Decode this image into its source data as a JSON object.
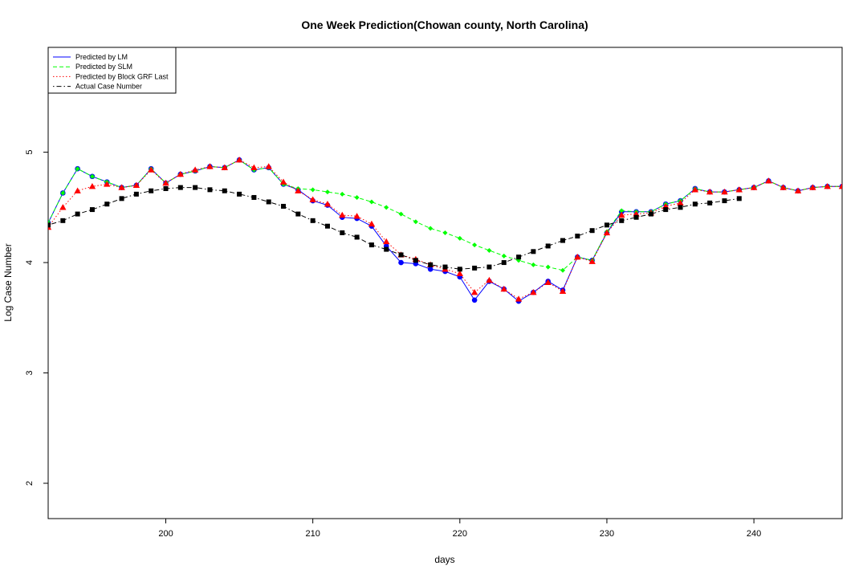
{
  "chart_data": {
    "type": "line",
    "title": "One Week Prediction(Chowan county, North Carolina)",
    "xlabel": "days",
    "ylabel": "Log Case Number",
    "xlim": [
      192,
      246
    ],
    "ylim": [
      1.68,
      5.95
    ],
    "xticks": [
      200,
      210,
      220,
      230,
      240
    ],
    "yticks": [
      2,
      3,
      4,
      5
    ],
    "grid": false,
    "legend_position": "top-left",
    "series": [
      {
        "name": "Predicted by LM",
        "color": "#0000ff",
        "line_style": "solid",
        "marker": "circle",
        "x": [
          192,
          193,
          194,
          195,
          196,
          197,
          198,
          199,
          200,
          201,
          202,
          203,
          204,
          205,
          206,
          207,
          208,
          209,
          210,
          211,
          212,
          213,
          214,
          215,
          216,
          217,
          218,
          219,
          220,
          221,
          222,
          223,
          224,
          225,
          226,
          227,
          228,
          229,
          230,
          231,
          232,
          233,
          234,
          235,
          236,
          237,
          238,
          239,
          240,
          241,
          242,
          243,
          244,
          245,
          246
        ],
        "y": [
          4.36,
          4.63,
          4.85,
          4.78,
          4.73,
          4.68,
          4.7,
          4.85,
          4.72,
          4.8,
          4.83,
          4.87,
          4.86,
          4.93,
          4.84,
          4.86,
          4.71,
          4.66,
          4.56,
          4.52,
          4.41,
          4.4,
          4.33,
          4.15,
          4.0,
          3.99,
          3.94,
          3.92,
          3.87,
          3.66,
          3.83,
          3.76,
          3.65,
          3.73,
          3.83,
          3.75,
          4.05,
          4.02,
          4.27,
          4.46,
          4.46,
          4.46,
          4.53,
          4.56,
          4.67,
          4.64,
          4.64,
          4.66,
          4.68,
          4.74,
          4.68,
          4.65,
          4.68,
          4.69,
          4.69
        ]
      },
      {
        "name": "Predicted by SLM",
        "color": "#00ff00",
        "line_style": "dashed",
        "marker": "diamond",
        "x": [
          192,
          193,
          194,
          195,
          196,
          197,
          198,
          199,
          200,
          201,
          202,
          203,
          204,
          205,
          206,
          207,
          208,
          209,
          210,
          211,
          212,
          213,
          214,
          215,
          216,
          217,
          218,
          219,
          220,
          221,
          222,
          223,
          224,
          225,
          226,
          227,
          228,
          229,
          230,
          231,
          232,
          233,
          234,
          235,
          236,
          237,
          238,
          239,
          240,
          241,
          242,
          243,
          244,
          245,
          246
        ],
        "y": [
          4.36,
          4.63,
          4.85,
          4.78,
          4.73,
          4.68,
          4.7,
          4.85,
          4.72,
          4.8,
          4.83,
          4.87,
          4.86,
          4.93,
          4.84,
          4.86,
          4.71,
          4.67,
          4.66,
          4.64,
          4.62,
          4.59,
          4.55,
          4.5,
          4.44,
          4.37,
          4.31,
          4.27,
          4.22,
          4.16,
          4.11,
          4.06,
          4.02,
          3.98,
          3.96,
          3.93,
          4.05,
          4.02,
          4.28,
          4.47,
          4.46,
          4.46,
          4.53,
          4.56,
          4.67,
          4.64,
          4.64,
          4.66,
          4.68,
          4.74,
          4.68,
          4.65,
          4.68,
          4.69,
          4.69
        ]
      },
      {
        "name": "Predicted by Block GRF Last",
        "color": "#ff0000",
        "line_style": "dotted",
        "marker": "triangle",
        "x": [
          192,
          193,
          194,
          195,
          196,
          197,
          198,
          199,
          200,
          201,
          202,
          203,
          204,
          205,
          206,
          207,
          208,
          209,
          210,
          211,
          212,
          213,
          214,
          215,
          216,
          217,
          218,
          219,
          220,
          221,
          222,
          223,
          224,
          225,
          226,
          227,
          228,
          229,
          230,
          231,
          232,
          233,
          234,
          235,
          236,
          237,
          238,
          239,
          240,
          241,
          242,
          243,
          244,
          245,
          246
        ],
        "y": [
          4.32,
          4.5,
          4.65,
          4.69,
          4.71,
          4.68,
          4.7,
          4.84,
          4.72,
          4.8,
          4.84,
          4.87,
          4.86,
          4.93,
          4.86,
          4.87,
          4.73,
          4.65,
          4.57,
          4.53,
          4.43,
          4.42,
          4.35,
          4.19,
          4.07,
          4.03,
          3.98,
          3.94,
          3.9,
          3.73,
          3.84,
          3.76,
          3.67,
          3.73,
          3.82,
          3.74,
          4.05,
          4.01,
          4.27,
          4.43,
          4.44,
          4.45,
          4.51,
          4.54,
          4.66,
          4.64,
          4.64,
          4.66,
          4.68,
          4.74,
          4.68,
          4.65,
          4.68,
          4.69,
          4.69
        ]
      },
      {
        "name": "Actual Case Number",
        "color": "#000000",
        "line_style": "dotdash",
        "marker": "square",
        "x": [
          192,
          193,
          194,
          195,
          196,
          197,
          198,
          199,
          200,
          201,
          202,
          203,
          204,
          205,
          206,
          207,
          208,
          209,
          210,
          211,
          212,
          213,
          214,
          215,
          216,
          217,
          218,
          219,
          220,
          221,
          222,
          223,
          224,
          225,
          226,
          227,
          228,
          229,
          230,
          231,
          232,
          233,
          234,
          235,
          236,
          237,
          238,
          239
        ],
        "y": [
          4.34,
          4.38,
          4.44,
          4.48,
          4.53,
          4.58,
          4.62,
          4.65,
          4.67,
          4.68,
          4.68,
          4.66,
          4.65,
          4.62,
          4.59,
          4.55,
          4.51,
          4.44,
          4.38,
          4.33,
          4.27,
          4.23,
          4.16,
          4.12,
          4.07,
          4.02,
          3.98,
          3.96,
          3.94,
          3.95,
          3.96,
          4.0,
          4.05,
          4.1,
          4.15,
          4.2,
          4.24,
          4.29,
          4.34,
          4.38,
          4.41,
          4.44,
          4.48,
          4.5,
          4.53,
          4.54,
          4.56,
          4.58
        ]
      }
    ]
  }
}
